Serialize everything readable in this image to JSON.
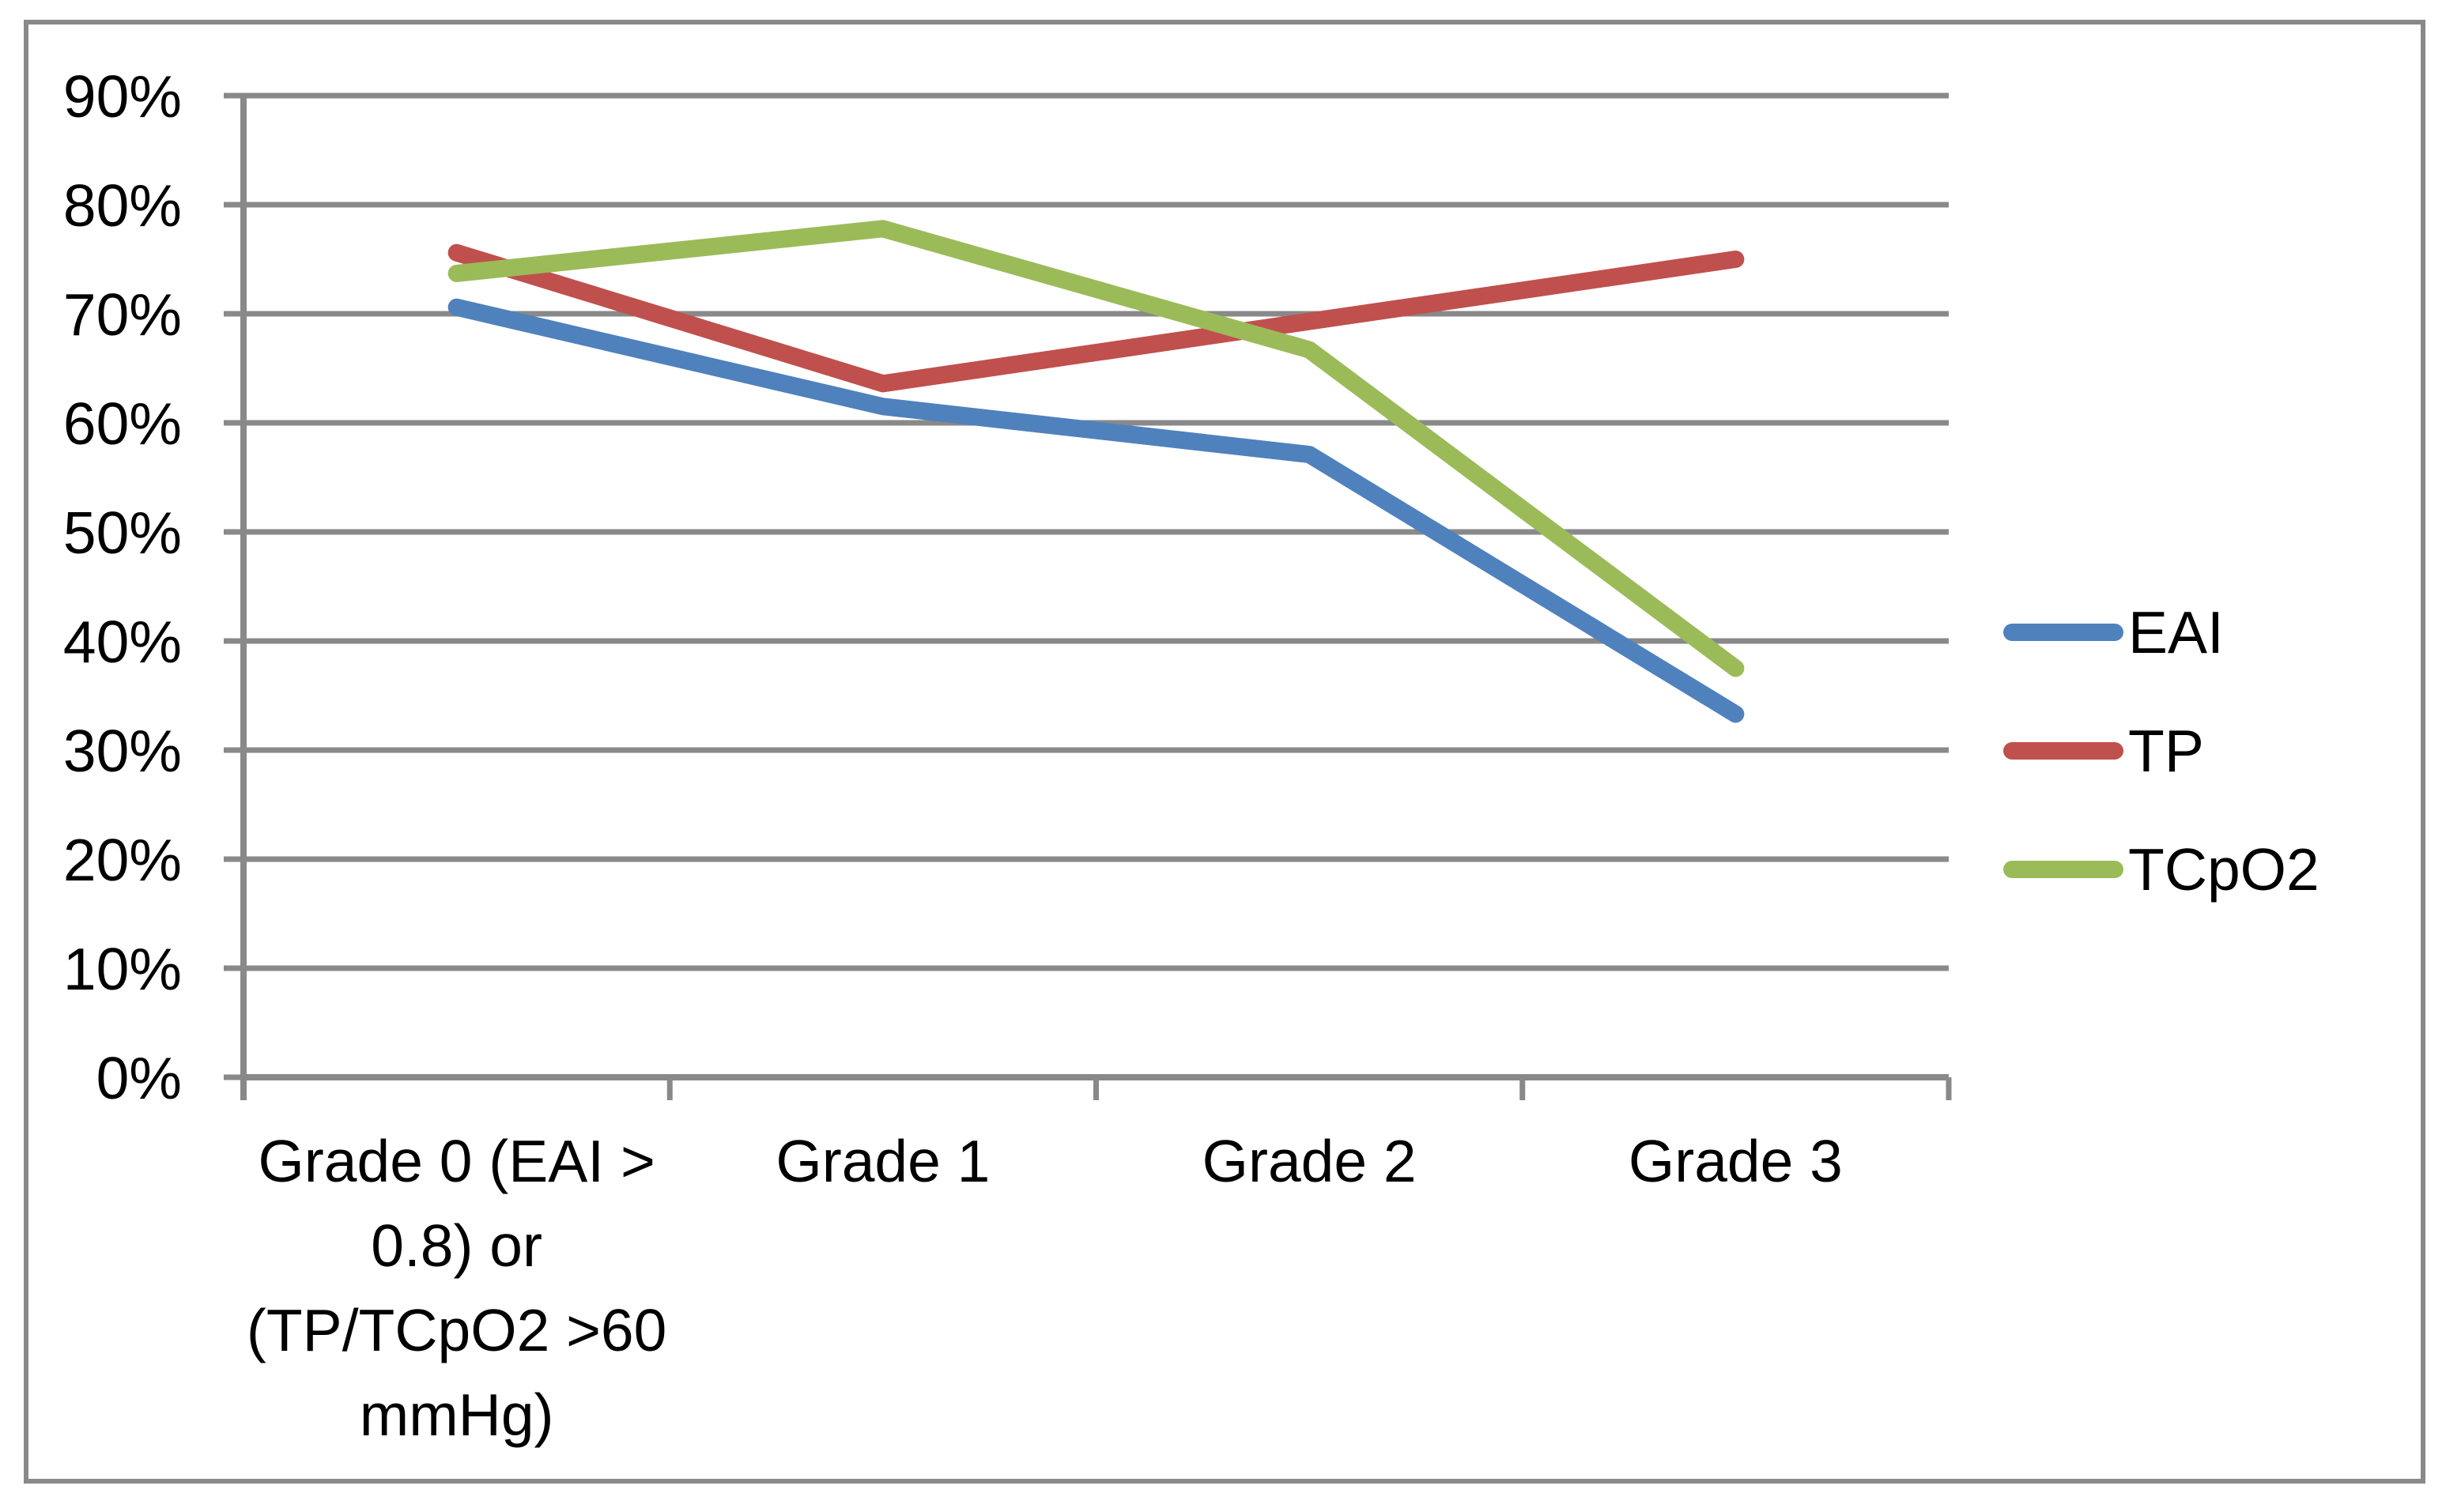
{
  "figure": {
    "background": "#FFFFFF",
    "border_color": "#898989"
  },
  "chart_data": {
    "type": "line",
    "title": "",
    "categories": [
      "Grade 0 (EAI > 0.8) or (TP/TCpO2 >60 mmHg)",
      "Grade 1",
      "Grade 2",
      "Grade 3"
    ],
    "category_label_lines": [
      [
        "Grade 0 (EAI >",
        "0.8) or",
        "(TP/TCpO2 >60",
        "mmHg)"
      ],
      [
        "Grade 1"
      ],
      [
        "Grade 2"
      ],
      [
        "Grade 3"
      ]
    ],
    "series": [
      {
        "name": "EAI",
        "color": "#4F81BD",
        "values": [
          70.6,
          61.5,
          57.1,
          33.3
        ]
      },
      {
        "name": "TP",
        "color": "#C0504D",
        "values": [
          75.6,
          63.6,
          69.3,
          75.0
        ]
      },
      {
        "name": "TCpO2",
        "color": "#9BBB59",
        "values": [
          73.7,
          77.8,
          66.7,
          37.5
        ]
      }
    ],
    "y_axis": {
      "min": 0,
      "max": 90,
      "step": 10,
      "unit": "%",
      "tick_labels": [
        "0%",
        "10%",
        "20%",
        "30%",
        "40%",
        "50%",
        "60%",
        "70%",
        "80%",
        "90%"
      ]
    },
    "x_axis": {
      "label": ""
    },
    "legend": {
      "position": "right",
      "entries": [
        "EAI",
        "TP",
        "TCpO2"
      ]
    },
    "grid": true,
    "styles": {
      "gridline_color": "#898989",
      "axis_color": "#898989",
      "text_color": "#000000"
    }
  }
}
